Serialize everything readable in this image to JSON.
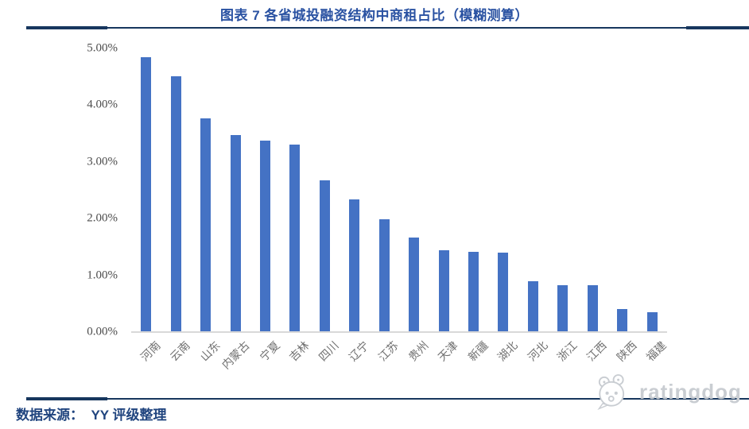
{
  "header": {
    "title": "图表 7 各省城投融资结构中商租占比（模糊测算）"
  },
  "footer": {
    "source_label": "数据来源：  YY 评级整理"
  },
  "watermark": {
    "brand": "ratingdog",
    "icon": "dog-face-icon"
  },
  "colors": {
    "bar": "#4472C4",
    "title_text": "#2A52A2",
    "footer_text": "#21457F",
    "rule": "#17375E",
    "y_axis_text": "#4D4D4D",
    "x_axis_text": "#707070",
    "axis_line": "#D9D9D9",
    "watermark": "#C9CDD2"
  },
  "chart_data": {
    "type": "bar",
    "title": "图表 7 各省城投融资结构中商租占比（模糊测算）",
    "categories": [
      "河南",
      "云南",
      "山东",
      "内蒙古",
      "宁夏",
      "吉林",
      "四川",
      "辽宁",
      "江苏",
      "贵州",
      "天津",
      "新疆",
      "湖北",
      "河北",
      "浙江",
      "江西",
      "陕西",
      "福建"
    ],
    "values": [
      4.85,
      4.51,
      3.77,
      3.48,
      3.38,
      3.3,
      2.67,
      2.34,
      1.99,
      1.66,
      1.44,
      1.42,
      1.4,
      0.89,
      0.83,
      0.82,
      0.4,
      0.35
    ],
    "unit": "%",
    "xlabel": "",
    "ylabel": "",
    "ylim": [
      0,
      5
    ],
    "yticks": [
      "0.00%",
      "1.00%",
      "2.00%",
      "3.00%",
      "4.00%",
      "5.00%"
    ],
    "grid": false,
    "legend": false,
    "bar_color": "#4472C4"
  }
}
